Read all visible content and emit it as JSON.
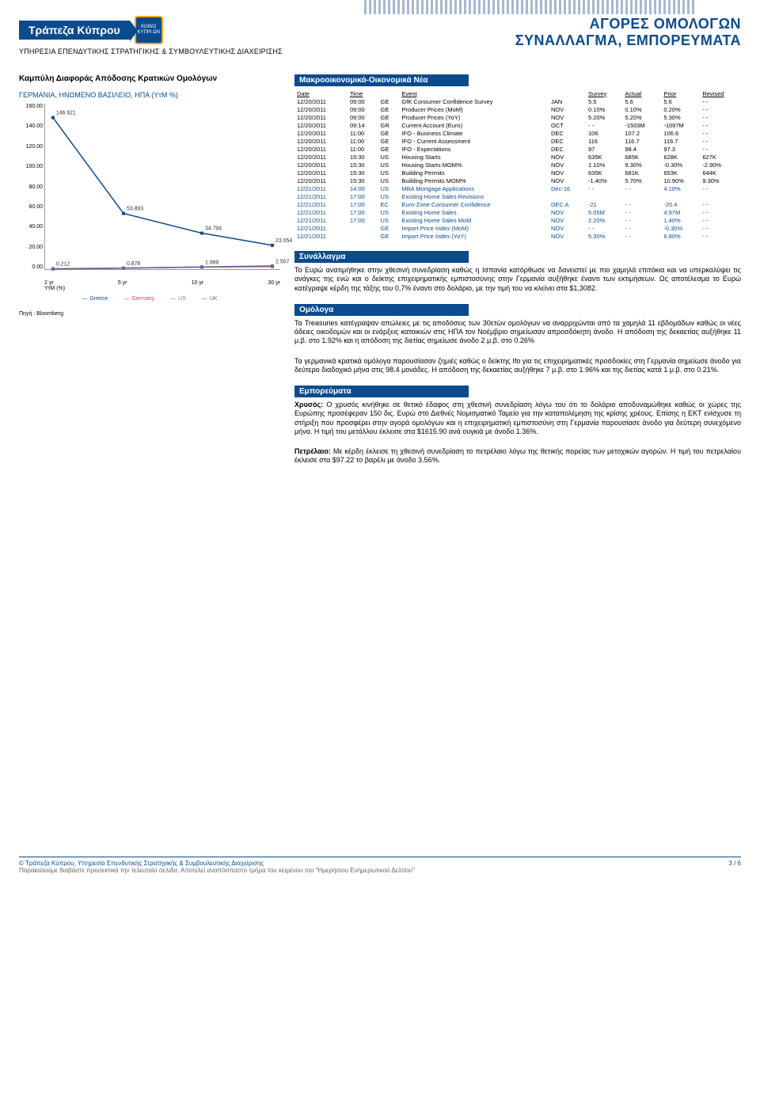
{
  "header": {
    "logo_text": "Τράπεζα Κύπρου",
    "badge_text": "ΚΟΙΝΟ ΚΥΠΡΙ ΩΝ",
    "service": "ΥΠΗΡΕΣΙΑ ΕΠΕΝΔΥΤΙΚΗΣ ΣΤΡΑΤΗΓΙΚΗΣ & ΣΥΜΒΟΥΛΕΥΤΙΚΗΣ ΔΙΑΧΕΙΡΙΣΗΣ",
    "title1": "ΑΓΟΡΕΣ ΟΜΟΛΟΓΩΝ",
    "title2": "ΣΥΝΑΛΛΑΓΜΑ, ΕΜΠΟΡΕΥΜΑΤΑ"
  },
  "chart": {
    "title": "Καμπύλη Διαφοράς Απόδοσης Κρατικών Ομολόγων",
    "subtitle": "ΓΕΡΜΑΝΙΑ, ΗΝΩΜΕΝΟ ΒΑΣΙΛΕΙΟ, ΗΠΑ (ΥτΜ %)",
    "axis_label": "ΥτΜ (%)",
    "ylim": [
      0,
      160
    ],
    "ystep": 20,
    "yticks": [
      "160.00",
      "140.00",
      "120.00",
      "100.00",
      "80.00",
      "60.00",
      "40.00",
      "20.00",
      "0.00"
    ],
    "xticks": [
      "2 yr",
      "5 yr",
      "10 yr",
      "30 yr"
    ],
    "series": {
      "Greece": {
        "color": "#0a4b8e",
        "points": [
          146.621,
          53.893,
          34.794,
          23.054
        ],
        "labels": [
          "146.621",
          "53.893",
          "34.794",
          "23.054"
        ]
      },
      "Germany": {
        "color": "#d0417e",
        "points": [
          0.212,
          0.878,
          1.969,
          2.507
        ],
        "labels": [
          "0.212",
          "0.878",
          "1.969",
          "2.507"
        ]
      },
      "US": {
        "color": "#5a9e5a",
        "points": [
          0.25,
          0.9,
          2.0,
          3.0
        ]
      },
      "UK": {
        "color": "#7c5aa0",
        "points": [
          0.4,
          1.1,
          2.1,
          3.1
        ]
      }
    },
    "legend": [
      "Greece",
      "Germany",
      "US",
      "UK"
    ],
    "source": "Πηγή : Bloomberg"
  },
  "macro": {
    "title": "Μακροοικονομικά-Οικονομικά Νέα",
    "header": [
      "Date",
      "Time",
      "",
      "Event",
      "",
      "Survey",
      "Actual",
      "Prior",
      "Revised"
    ],
    "rows": [
      [
        "12/20/2011",
        "09:00",
        "GE",
        "GfK Consumer Confidence Survey",
        "JAN",
        "5.5",
        "5.6",
        "5.6",
        "- -",
        ""
      ],
      [
        "12/20/2011",
        "09:00",
        "GE",
        "Producer Prices (MoM)",
        "NOV",
        "0.10%",
        "0.10%",
        "0.20%",
        "- -",
        ""
      ],
      [
        "12/20/2011",
        "09:00",
        "GE",
        "Producer Prices (YoY)",
        "NOV",
        "5.20%",
        "5.20%",
        "5.30%",
        "- -",
        ""
      ],
      [
        "12/20/2011",
        "09:14",
        "GR",
        "Current Account (Euro)",
        "OCT",
        "- -",
        "-1503M",
        "-1097M",
        "- -",
        ""
      ],
      [
        "12/20/2011",
        "11:00",
        "GE",
        "IFO - Business Climate",
        "DEC",
        "106",
        "107.2",
        "106.6",
        "- -",
        ""
      ],
      [
        "12/20/2011",
        "11:00",
        "GE",
        "IFO - Current Assessment",
        "DEC",
        "116",
        "116.7",
        "116.7",
        "- -",
        ""
      ],
      [
        "12/20/2011",
        "11:00",
        "GE",
        "IFO - Expectations",
        "DEC",
        "97",
        "98.4",
        "97.3",
        "- -",
        ""
      ],
      [
        "12/20/2011",
        "15:30",
        "US",
        "Housing Starts",
        "NOV",
        "635K",
        "685K",
        "628K",
        "627K",
        ""
      ],
      [
        "12/20/2011",
        "15:30",
        "US",
        "Housing Starts MOM%",
        "NOV",
        "1.10%",
        "9.30%",
        "-0.30%",
        "-2.90%",
        ""
      ],
      [
        "12/20/2011",
        "15:30",
        "US",
        "Building Permits",
        "NOV",
        "635K",
        "681K",
        "653K",
        "644K",
        ""
      ],
      [
        "12/20/2011",
        "15:30",
        "US",
        "Building Permits MOM%",
        "NOV",
        "-1.40%",
        "5.70%",
        "10.90%",
        "9.30%",
        ""
      ],
      [
        "12/21/2011",
        "14:00",
        "US",
        "MBA Mortgage Applications",
        "Dec-16",
        "- -",
        "- -",
        "4.10%",
        "- -",
        "blue"
      ],
      [
        "12/21/2011",
        "17:00",
        "US",
        "Existing Home Sales Revisions",
        "",
        "",
        "",
        "",
        "",
        "blue"
      ],
      [
        "12/21/2011",
        "17:00",
        "EC",
        "Euro-Zone Consumer Confidence",
        "DEC A",
        "-21",
        "- -",
        "-20.4",
        "- -",
        "blue"
      ],
      [
        "12/21/2011",
        "17:00",
        "US",
        "Existing Home Sales",
        "NOV",
        "5.05M",
        "- -",
        "4.97M",
        "- -",
        "blue"
      ],
      [
        "12/21/2011",
        "17:00",
        "US",
        "Existing Home Sales MoM",
        "NOV",
        "2.20%",
        "- -",
        "1.40%",
        "- -",
        "blue"
      ],
      [
        "12/21/2011",
        "",
        "GE",
        "Import Price Index (MoM)",
        "NOV",
        "- -",
        "- -",
        "-0.30%",
        "- -",
        "blue"
      ],
      [
        "12/21/2011",
        "",
        "GE",
        "Import Price Index (YoY)",
        "NOV",
        "5.30%",
        "- -",
        "6.80%",
        "- -",
        "blue"
      ]
    ]
  },
  "fx": {
    "title": "Συνάλλαγμα",
    "body": "Το Ευρώ ανατιμήθηκε στην χθεσινή συνεδρίαση καθώς η Ισπανία κατόρθωσε να δανειστεί με πιο χαμηλά επιτόκια και να υπερκαλύψει τις ανάγκες της ενώ και ο δείκτης επιχειρηματικής εμπιστοσύνης στην Γερμανία αυξήθηκε έναντι των εκτιμήσεων. Ως αποτέλεσμα το Ευρώ κατέγραψε κέρδη της τάξης του 0,7% έναντι στο δολάριο, με την τιμή του να κλείνει στα $1,3082."
  },
  "bonds": {
    "title": "Ομόλογα",
    "p1": "Τα Treasuries κατέγραψαν απώλειες με τις αποδόσεις των 30ετών ομολόγων να αναρριχώνται από τα χαμηλά 11 εβδομάδων καθώς οι νέες άδειες οικοδομών και οι ενάρξεις κατοικιών στις ΗΠΑ τον Νοέμβριο σημείωσαν απροσδόκητη άνοδο. Η απόδοση της δεκαετίας αυξήθηκε 11 μ.β. στο 1.92% και η απόδοση της διετίας σημείωσε άνοδο 2 μ.β. στο 0.26%",
    "p2": "Τα γερμανικά κρατικά ομόλογα παρουσίασαν ζημιές καθώς ο δείκτης Ifo για τις επιχειρηματικές προσδοκίες στη Γερμανία σημείωσε άνοδο για δεύτερο διαδοχικό μήνα στις 98.4 μονάδες. Η απόδοση της δεκαετίας αυξήθηκε 7 μ.β. στο 1.96% και της διετίας κατά 1 μ.β. στο 0.21%."
  },
  "comm": {
    "title": "Εμπορεύματα",
    "gold_label": "Χρυσός:",
    "gold": " Ο χρυσός κινήθηκε σε θετικό έδαφος στη χθεσινή συνεδρίαση λόγω του ότι το δολάριο αποδυναμώθηκε καθώς οι χώρες της Ευρώπης προσέφεραν 150 δις. Ευρώ στο Διεθνές Νομισματικό Ταμείο για την καταπολέμηση της κρίσης χρέους. Επίσης η ΕΚΤ ενίσχυσε τη στήριξη που προσφέρει στην αγορά ομολόγων και η επιχειρηματική εμπιστοσύνη στη Γερμανία παρουσίασε άνοδο για δεύτερη συνεχόμενο μήνα. Η τιμή του μετάλλου έκλεισε στα $1615.90 ανά ουγκιά με άνοδο 1.36%.",
    "oil_label": "Πετρέλαιο:",
    "oil": " Mε κέρδη έκλεισε τη χθεσινή συνεδρίαση το πετρέλαιο λόγω της θετικής πορείας των μετοχικών αγορών. Η τιμή του πετρελαίου έκλεισε στα $97.22 το βαρέλι με άνοδο 3.56%."
  },
  "footer": {
    "copyright": "© Τράπεζα Κύπρου, Υπηρεσία Επενδυτικής Στρατηγικής & Συμβουλευτικής Διαχείρισης",
    "page": "3 / 6",
    "disclaimer": "Παρακαλούμε διαβάστε προσεκτικά την τελευταία σελίδα. Αποτελεί αναπόσπαστο τμήμα του κειμένου του \"Ημερήσιου Ενημερωτικού Δελτίου\""
  }
}
